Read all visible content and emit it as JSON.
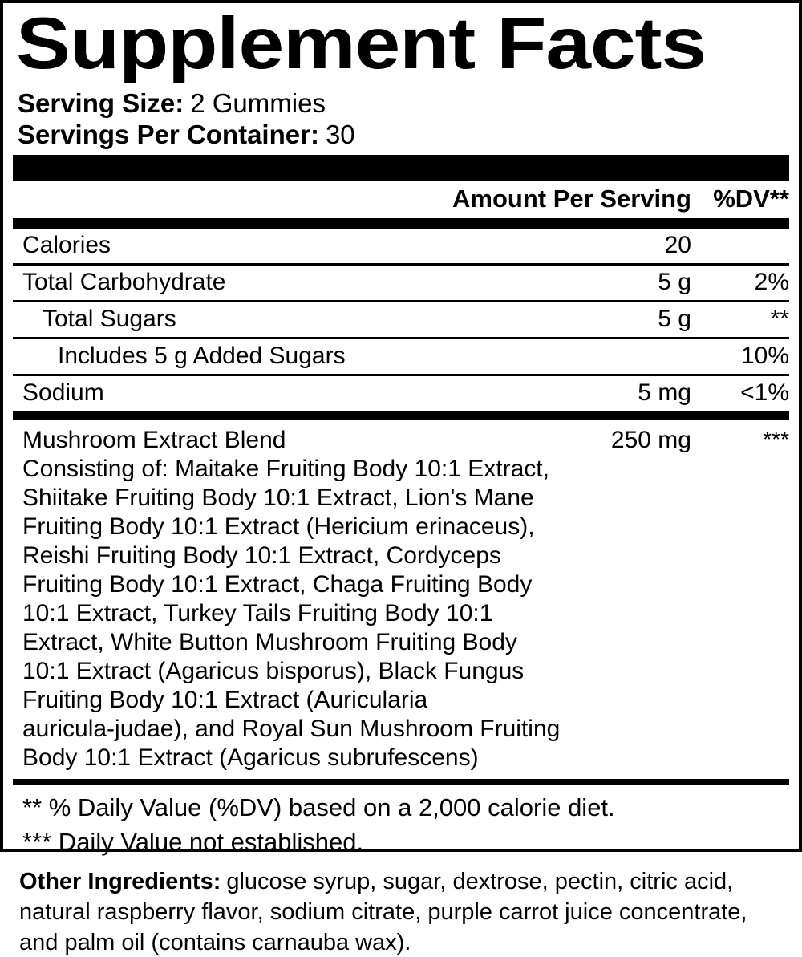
{
  "panel": {
    "title": "Supplement Facts",
    "serving_size": {
      "label": "Serving Size:",
      "value": "2 Gummies"
    },
    "servings_per_container": {
      "label": "Servings Per Container:",
      "value": "30"
    }
  },
  "table": {
    "amount_header": "Amount Per Serving",
    "dv_header": "%DV**",
    "rows": [
      {
        "name": "Calories",
        "amount": "20",
        "dv": ""
      },
      {
        "name": "Total Carbohydrate",
        "amount": "5 g",
        "dv": "2%"
      },
      {
        "name": "Total Sugars",
        "amount": "5 g",
        "dv": "**"
      },
      {
        "name": "Includes 5 g Added Sugars",
        "amount": "",
        "dv": "10%"
      },
      {
        "name": "Sodium",
        "amount": "5 mg",
        "dv": "<1%"
      }
    ],
    "blend": {
      "name": "Mushroom Extract Blend",
      "amount": "250 mg",
      "dv": "***",
      "description": "Consisting of: Maitake Fruiting Body 10:1 Extract,\nShiitake Fruiting Body 10:1 Extract, Lion's Mane\nFruiting Body 10:1 Extract (Hericium erinaceus),\nReishi Fruiting Body 10:1 Extract, Cordyceps\nFruiting Body 10:1 Extract, Chaga Fruiting Body\n10:1 Extract, Turkey Tails Fruiting Body 10:1\nExtract, White Button Mushroom Fruiting Body\n10:1 Extract (Agaricus bisporus), Black Fungus\nFruiting Body 10:1 Extract (Auricularia\nauricula-judae), and Royal Sun Mushroom Fruiting\nBody 10:1 Extract (Agaricus subrufescens)"
    }
  },
  "footnotes": {
    "dv_note": "** % Daily Value (%DV) based on a 2,000 calorie diet.",
    "not_established_note": "*** Daily Value not established."
  },
  "other_ingredients": {
    "label": "Other Ingredients:",
    "text": "glucose syrup, sugar, dextrose, pectin, citric acid, natural raspberry flavor, sodium citrate, purple carrot juice concentrate, and palm oil (contains carnauba wax)."
  },
  "colors": {
    "text": "#000000",
    "background": "#ffffff"
  }
}
